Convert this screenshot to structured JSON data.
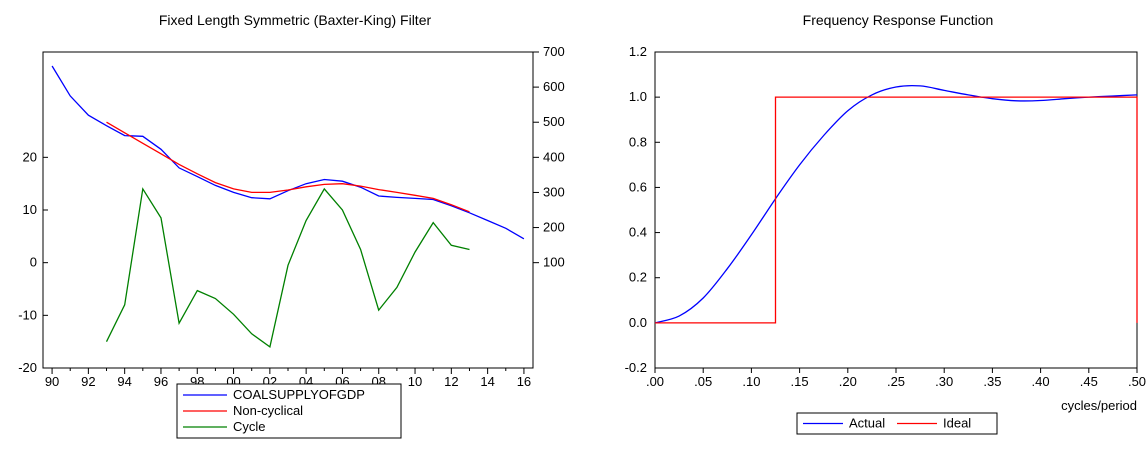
{
  "chart_data": [
    {
      "type": "line",
      "title": "Fixed Length Symmetric (Baxter-King) Filter",
      "x_tick_labels": [
        "90",
        "92",
        "94",
        "96",
        "98",
        "00",
        "02",
        "04",
        "06",
        "08",
        "10",
        "12",
        "14",
        "16"
      ],
      "x_years": [
        1990,
        1992,
        1994,
        1996,
        1998,
        2000,
        2002,
        2004,
        2006,
        2008,
        2010,
        2012,
        2014,
        2016
      ],
      "xlim": [
        1989.5,
        2016.5
      ],
      "y_left_ticks": [
        -20,
        -10,
        0,
        10,
        20
      ],
      "y_left_tick_labels": [
        "-20",
        "-10",
        "0",
        "10",
        "20"
      ],
      "ylim_left": [
        -20,
        40
      ],
      "y_right_ticks": [
        100,
        200,
        300,
        400,
        500,
        600,
        700
      ],
      "y_right_tick_labels": [
        "100",
        "200",
        "300",
        "400",
        "500",
        "600",
        "700"
      ],
      "ylim_right": [
        -200,
        700
      ],
      "legend_position": "bottom",
      "series": [
        {
          "name": "COALSUPPLYOFGDP",
          "color": "#0000ff",
          "axis": "right",
          "x": [
            1990,
            1991,
            1992,
            1993,
            1994,
            1995,
            1996,
            1997,
            1998,
            1999,
            2000,
            2001,
            2002,
            2003,
            2004,
            2005,
            2006,
            2007,
            2008,
            2009,
            2010,
            2011,
            2012,
            2013,
            2014,
            2015,
            2016
          ],
          "values": [
            660,
            575,
            520,
            490,
            462,
            460,
            423,
            370,
            345,
            320,
            300,
            285,
            282,
            305,
            325,
            337,
            332,
            315,
            290,
            286,
            283,
            280,
            262,
            242,
            220,
            198,
            168
          ]
        },
        {
          "name": "Non-cyclical",
          "color": "#ff0000",
          "axis": "right",
          "x": [
            1993,
            1994,
            1995,
            1996,
            1997,
            1998,
            1999,
            2000,
            2001,
            2002,
            2003,
            2004,
            2005,
            2006,
            2007,
            2008,
            2009,
            2010,
            2011,
            2012,
            2013
          ],
          "values": [
            500,
            470,
            440,
            410,
            380,
            353,
            328,
            310,
            300,
            300,
            307,
            316,
            323,
            325,
            318,
            308,
            300,
            292,
            283,
            265,
            245
          ]
        },
        {
          "name": "Cycle",
          "color": "#008000",
          "axis": "left",
          "x": [
            1993,
            1994,
            1995,
            1996,
            1997,
            1998,
            1999,
            2000,
            2001,
            2002,
            2003,
            2004,
            2005,
            2006,
            2007,
            2008,
            2009,
            2010,
            2011,
            2012,
            2013
          ],
          "values": [
            -15,
            -8,
            14,
            8.5,
            -11.5,
            -5.3,
            -6.8,
            -9.8,
            -13.5,
            -16,
            -0.5,
            8,
            14,
            10,
            2.5,
            -9,
            -4.7,
            2,
            7.6,
            3.3,
            2.5
          ]
        }
      ]
    },
    {
      "type": "line",
      "title": "Frequency Response Function",
      "xlabel": "cycles/period",
      "x_ticks": [
        0,
        0.05,
        0.1,
        0.15,
        0.2,
        0.25,
        0.3,
        0.35,
        0.4,
        0.45,
        0.5
      ],
      "x_tick_labels": [
        ".00",
        ".05",
        ".10",
        ".15",
        ".20",
        ".25",
        ".30",
        ".35",
        ".40",
        ".45",
        ".50"
      ],
      "xlim": [
        0,
        0.5
      ],
      "y_ticks": [
        -0.2,
        0,
        0.2,
        0.4,
        0.6,
        0.8,
        1.0,
        1.2
      ],
      "y_tick_labels": [
        "-0.2",
        "0.0",
        "0.2",
        "0.4",
        "0.6",
        "0.8",
        "1.0",
        "1.2"
      ],
      "ylim": [
        -0.2,
        1.2
      ],
      "legend_position": "bottom",
      "series": [
        {
          "name": "Actual",
          "color": "#0000ff",
          "x": [
            0,
            0.025,
            0.05,
            0.075,
            0.1,
            0.125,
            0.15,
            0.175,
            0.2,
            0.225,
            0.25,
            0.275,
            0.3,
            0.325,
            0.35,
            0.375,
            0.4,
            0.425,
            0.45,
            0.475,
            0.5
          ],
          "values": [
            0,
            0.03,
            0.11,
            0.24,
            0.39,
            0.55,
            0.7,
            0.83,
            0.94,
            1.01,
            1.045,
            1.05,
            1.03,
            1.01,
            0.993,
            0.984,
            0.985,
            0.993,
            1.0,
            1.005,
            1.01
          ]
        },
        {
          "name": "Ideal",
          "color": "#ff0000",
          "x": [
            0,
            0.125,
            0.125,
            0.5,
            0.5
          ],
          "values": [
            0,
            0,
            1,
            1,
            0
          ]
        }
      ]
    }
  ]
}
